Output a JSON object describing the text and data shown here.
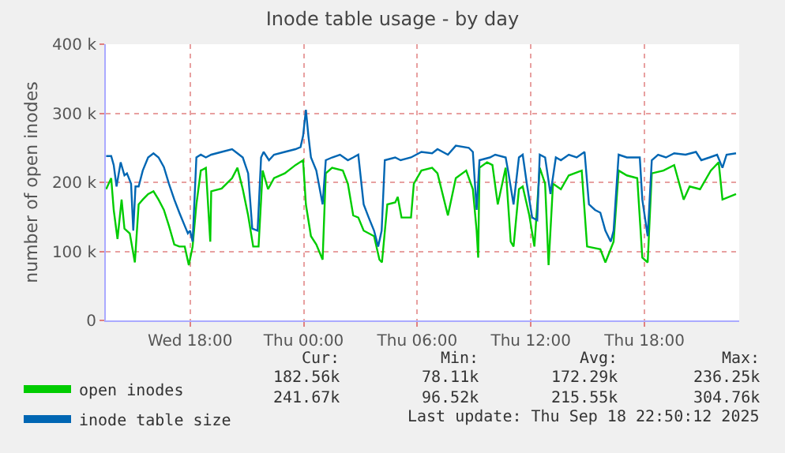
{
  "chart_data": {
    "type": "line",
    "title": "Inode table usage - by day",
    "ylabel": "number of open inodes",
    "xlim": [
      "2025-09-17T13:33",
      "2025-09-18T23:00"
    ],
    "xticks": [
      {
        "value": "2025-09-17T18:00",
        "label": "Wed 18:00"
      },
      {
        "value": "2025-09-18T00:00",
        "label": "Thu 00:00"
      },
      {
        "value": "2025-09-18T06:00",
        "label": "Thu 06:00"
      },
      {
        "value": "2025-09-18T12:00",
        "label": "Thu 12:00"
      },
      {
        "value": "2025-09-18T18:00",
        "label": "Thu 18:00"
      }
    ],
    "ylim": [
      0,
      400
    ],
    "yticks": [
      {
        "value": 0,
        "label": "0"
      },
      {
        "value": 100,
        "label": "100 k"
      },
      {
        "value": 200,
        "label": "200 k"
      },
      {
        "value": 300,
        "label": "300 k"
      },
      {
        "value": 400,
        "label": "400 k"
      }
    ],
    "grid": true,
    "legend": "bottom",
    "marker": "none",
    "line_style": "solid",
    "annotations": [
      "Cur:",
      "Min:",
      "Avg:",
      "Max:",
      "182.56k",
      "78.11k",
      "172.29k",
      "236.25k",
      "241.67k",
      "96.52k",
      "215.55k",
      "304.76k",
      "Last update: Thu Sep 18 22:50:12 2025"
    ],
    "series": [
      {
        "name": "open inodes",
        "color": "#00cc00",
        "x": [
          "2025-09-17T13:34",
          "2025-09-17T13:50",
          "2025-09-17T13:58",
          "2025-09-17T14:10",
          "2025-09-17T14:23",
          "2025-09-17T14:32",
          "2025-09-17T14:49",
          "2025-09-17T15:05",
          "2025-09-17T15:17",
          "2025-09-17T15:30",
          "2025-09-17T15:47",
          "2025-09-17T16:04",
          "2025-09-17T16:20",
          "2025-09-17T16:37",
          "2025-09-17T16:53",
          "2025-09-17T17:10",
          "2025-09-17T17:26",
          "2025-09-17T17:43",
          "2025-09-17T17:56",
          "2025-09-17T18:08",
          "2025-09-17T18:20",
          "2025-09-17T18:34",
          "2025-09-17T18:50",
          "2025-09-17T19:04",
          "2025-09-17T19:07",
          "2025-09-17T19:40",
          "2025-09-17T20:13",
          "2025-09-17T20:30",
          "2025-09-17T20:47",
          "2025-09-17T21:04",
          "2025-09-17T21:20",
          "2025-09-17T21:37",
          "2025-09-17T21:50",
          "2025-09-17T22:07",
          "2025-09-17T22:26",
          "2025-09-17T23:00",
          "2025-09-17T23:34",
          "2025-09-17T23:58",
          "2025-09-18T00:07",
          "2025-09-18T00:23",
          "2025-09-18T00:40",
          "2025-09-18T01:00",
          "2025-09-18T01:10",
          "2025-09-18T01:30",
          "2025-09-18T02:04",
          "2025-09-18T02:20",
          "2025-09-18T02:37",
          "2025-09-18T02:53",
          "2025-09-18T03:10",
          "2025-09-18T03:43",
          "2025-09-18T04:00",
          "2025-09-18T04:08",
          "2025-09-18T04:25",
          "2025-09-18T04:50",
          "2025-09-18T04:58",
          "2025-09-18T05:10",
          "2025-09-18T05:40",
          "2025-09-18T05:49",
          "2025-09-18T06:13",
          "2025-09-18T06:47",
          "2025-09-18T07:04",
          "2025-09-18T07:37",
          "2025-09-18T08:02",
          "2025-09-18T08:35",
          "2025-09-18T08:56",
          "2025-09-18T09:08",
          "2025-09-18T09:13",
          "2025-09-18T09:17",
          "2025-09-18T09:41",
          "2025-09-18T09:58",
          "2025-09-18T10:15",
          "2025-09-18T10:40",
          "2025-09-18T10:56",
          "2025-09-18T11:05",
          "2025-09-18T11:22",
          "2025-09-18T11:34",
          "2025-09-18T11:55",
          "2025-09-18T12:11",
          "2025-09-18T12:28",
          "2025-09-18T12:45",
          "2025-09-18T12:56",
          "2025-09-18T13:10",
          "2025-09-18T13:35",
          "2025-09-18T14:00",
          "2025-09-18T14:41",
          "2025-09-18T14:58",
          "2025-09-18T15:40",
          "2025-09-18T15:56",
          "2025-09-18T16:22",
          "2025-09-18T16:38",
          "2025-09-18T17:04",
          "2025-09-18T17:37",
          "2025-09-18T17:53",
          "2025-09-18T18:10",
          "2025-09-18T18:23",
          "2025-09-18T19:00",
          "2025-09-18T19:34",
          "2025-09-18T20:04",
          "2025-09-18T20:23",
          "2025-09-18T20:56",
          "2025-09-18T21:30",
          "2025-09-18T21:55",
          "2025-09-18T22:07",
          "2025-09-18T22:50"
        ],
        "values": [
          190,
          206,
          160,
          118,
          175,
          133,
          126,
          84,
          168,
          175,
          183,
          187,
          175,
          160,
          137,
          110,
          107,
          107,
          80,
          107,
          168,
          217,
          221,
          114,
          187,
          191,
          206,
          221,
          190,
          152,
          107,
          107,
          217,
          190,
          206,
          213,
          225,
          232,
          168,
          122,
          110,
          88,
          213,
          221,
          217,
          198,
          152,
          149,
          130,
          122,
          88,
          84,
          168,
          171,
          179,
          149,
          149,
          198,
          217,
          221,
          213,
          152,
          206,
          217,
          190,
          130,
          91,
          221,
          229,
          225,
          168,
          221,
          114,
          107,
          190,
          194,
          152,
          107,
          221,
          198,
          80,
          198,
          190,
          210,
          217,
          107,
          103,
          84,
          114,
          217,
          210,
          206,
          91,
          84,
          213,
          217,
          225,
          175,
          194,
          190,
          217,
          229,
          175,
          183
        ]
      },
      {
        "name": "inode table size",
        "color": "#0066b3",
        "x": [
          "2025-09-17T13:34",
          "2025-09-17T13:50",
          "2025-09-17T13:58",
          "2025-09-17T14:07",
          "2025-09-17T14:20",
          "2025-09-17T14:32",
          "2025-09-17T14:40",
          "2025-09-17T14:53",
          "2025-09-17T15:00",
          "2025-09-17T15:07",
          "2025-09-17T15:17",
          "2025-09-17T15:30",
          "2025-09-17T15:47",
          "2025-09-17T16:04",
          "2025-09-17T16:20",
          "2025-09-17T16:37",
          "2025-09-17T16:53",
          "2025-09-17T17:10",
          "2025-09-17T17:26",
          "2025-09-17T17:43",
          "2025-09-17T17:53",
          "2025-09-17T18:00",
          "2025-09-17T18:08",
          "2025-09-17T18:20",
          "2025-09-17T18:34",
          "2025-09-17T18:50",
          "2025-09-17T19:07",
          "2025-09-17T19:40",
          "2025-09-17T20:13",
          "2025-09-17T20:30",
          "2025-09-17T20:47",
          "2025-09-17T21:04",
          "2025-09-17T21:17",
          "2025-09-17T21:34",
          "2025-09-17T21:45",
          "2025-09-17T21:53",
          "2025-09-17T22:10",
          "2025-09-17T22:26",
          "2025-09-17T23:00",
          "2025-09-17T23:34",
          "2025-09-17T23:50",
          "2025-09-17T23:58",
          "2025-09-18T00:07",
          "2025-09-18T00:15",
          "2025-09-18T00:23",
          "2025-09-18T00:40",
          "2025-09-18T01:00",
          "2025-09-18T01:10",
          "2025-09-18T01:30",
          "2025-09-18T01:55",
          "2025-09-18T02:20",
          "2025-09-18T02:37",
          "2025-09-18T02:53",
          "2025-09-18T03:10",
          "2025-09-18T03:26",
          "2025-09-18T03:43",
          "2025-09-18T03:56",
          "2025-09-18T04:07",
          "2025-09-18T04:17",
          "2025-09-18T04:50",
          "2025-09-18T05:07",
          "2025-09-18T05:40",
          "2025-09-18T06:13",
          "2025-09-18T06:47",
          "2025-09-18T07:04",
          "2025-09-18T07:37",
          "2025-09-18T08:02",
          "2025-09-18T08:43",
          "2025-09-18T08:56",
          "2025-09-18T09:08",
          "2025-09-18T09:17",
          "2025-09-18T09:50",
          "2025-09-18T10:07",
          "2025-09-18T10:40",
          "2025-09-18T10:49",
          "2025-09-18T11:05",
          "2025-09-18T11:22",
          "2025-09-18T11:34",
          "2025-09-18T11:47",
          "2025-09-18T12:04",
          "2025-09-18T12:20",
          "2025-09-18T12:28",
          "2025-09-18T12:45",
          "2025-09-18T13:02",
          "2025-09-18T13:19",
          "2025-09-18T13:35",
          "2025-09-18T14:00",
          "2025-09-18T14:25",
          "2025-09-18T14:50",
          "2025-09-18T15:04",
          "2025-09-18T15:23",
          "2025-09-18T15:40",
          "2025-09-18T15:56",
          "2025-09-18T16:13",
          "2025-09-18T16:22",
          "2025-09-18T16:38",
          "2025-09-18T17:04",
          "2025-09-18T17:45",
          "2025-09-18T17:53",
          "2025-09-18T18:10",
          "2025-09-18T18:23",
          "2025-09-18T18:43",
          "2025-09-18T19:08",
          "2025-09-18T19:34",
          "2025-09-18T20:10",
          "2025-09-18T20:43",
          "2025-09-18T21:00",
          "2025-09-18T21:26",
          "2025-09-18T21:50",
          "2025-09-18T22:07",
          "2025-09-18T22:20",
          "2025-09-18T22:50"
        ],
        "values": [
          238,
          238,
          225,
          194,
          229,
          210,
          213,
          198,
          130,
          194,
          194,
          217,
          236,
          242,
          236,
          222,
          198,
          175,
          156,
          137,
          126,
          130,
          114,
          236,
          240,
          236,
          240,
          244,
          248,
          242,
          236,
          213,
          133,
          130,
          236,
          244,
          232,
          240,
          244,
          248,
          251,
          267,
          305,
          267,
          236,
          217,
          168,
          232,
          236,
          240,
          232,
          236,
          240,
          168,
          149,
          130,
          107,
          130,
          232,
          236,
          232,
          236,
          244,
          242,
          248,
          240,
          253,
          250,
          244,
          160,
          232,
          236,
          240,
          236,
          213,
          168,
          236,
          240,
          198,
          149,
          145,
          240,
          236,
          183,
          236,
          232,
          240,
          236,
          244,
          168,
          160,
          156,
          130,
          114,
          130,
          240,
          236,
          236,
          175,
          122,
          232,
          240,
          236,
          242,
          240,
          244,
          232,
          236,
          240,
          221,
          240,
          242
        ]
      }
    ]
  }
}
